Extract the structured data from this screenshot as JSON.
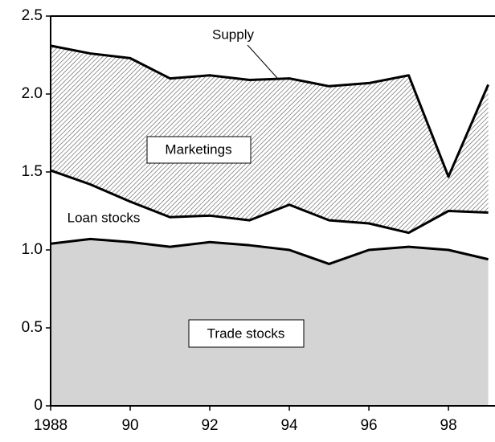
{
  "chart_data": {
    "type": "stacked_area",
    "x": [
      1988,
      1989,
      1990,
      1991,
      1992,
      1993,
      1994,
      1995,
      1996,
      1997,
      1998,
      1999
    ],
    "series": [
      {
        "name": "Trade stocks",
        "color": "#d4d4d4",
        "values": [
          1.04,
          1.07,
          1.05,
          1.02,
          1.05,
          1.03,
          1.0,
          0.91,
          1.0,
          1.02,
          1.0,
          0.94
        ]
      },
      {
        "name": "Loan stocks",
        "color": "#ffffff",
        "values": [
          0.47,
          0.35,
          0.26,
          0.19,
          0.17,
          0.16,
          0.29,
          0.28,
          0.17,
          0.09,
          0.25,
          0.3
        ]
      },
      {
        "name": "Marketings",
        "color": "#555555",
        "pattern": "hatch",
        "values": [
          0.8,
          0.84,
          0.92,
          0.89,
          0.9,
          0.9,
          0.81,
          0.86,
          0.9,
          1.01,
          0.22,
          0.82
        ]
      }
    ],
    "annotations": [
      "Supply"
    ],
    "xlim": [
      1988,
      1999.17
    ],
    "xticks": [
      {
        "value": 1988,
        "label": "1988"
      },
      {
        "value": 1990,
        "label": "90"
      },
      {
        "value": 1992,
        "label": "92"
      },
      {
        "value": 1994,
        "label": "94"
      },
      {
        "value": 1996,
        "label": "96"
      },
      {
        "value": 1998,
        "label": "98"
      }
    ],
    "ylim": [
      0,
      2.5
    ],
    "yticks": [
      0,
      0.5,
      {
        "value": 1,
        "label": "1.0"
      },
      1.5,
      {
        "value": 2,
        "label": "2.0"
      },
      2.5
    ]
  }
}
